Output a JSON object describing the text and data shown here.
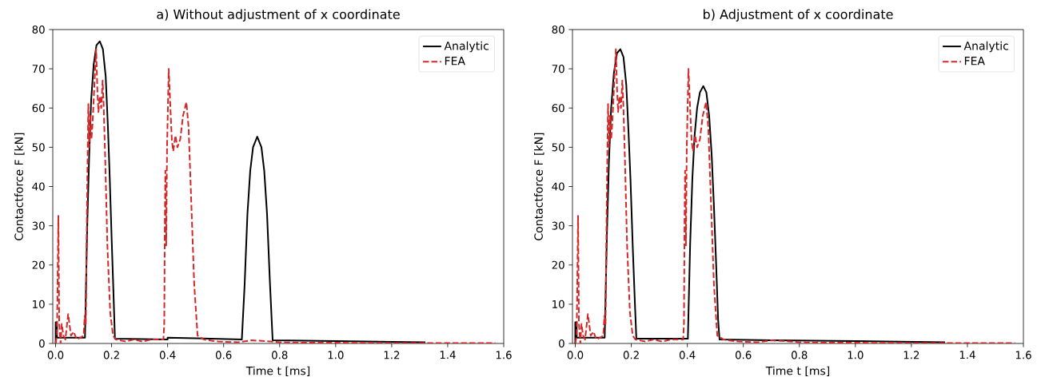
{
  "chart_data": [
    {
      "type": "line",
      "title": "a) Without adjustment of x coordinate",
      "xlabel": "Time t [ms]",
      "ylabel": "Contactforce F [kN]",
      "xlim": [
        -0.01,
        1.6
      ],
      "ylim": [
        0,
        80
      ],
      "xticks": [
        {
          "value": 0,
          "label": "0.0"
        },
        {
          "value": 0.2,
          "label": "0.2"
        },
        {
          "value": 0.4,
          "label": "0.4"
        },
        {
          "value": 0.6,
          "label": "0.6"
        },
        {
          "value": 0.8,
          "label": "0.8"
        },
        {
          "value": 1.0,
          "label": "1.0"
        },
        {
          "value": 1.2,
          "label": "1.2"
        },
        {
          "value": 1.4,
          "label": "1.4"
        },
        {
          "value": 1.6,
          "label": "1.6"
        }
      ],
      "yticks": [
        0,
        10,
        20,
        30,
        40,
        50,
        60,
        70,
        80
      ],
      "legend": "top right",
      "series": [
        {
          "name": "Analytic",
          "color": "#000000",
          "line_style": "solid",
          "x": [
            0,
            0,
            0.005,
            0.005,
            0.105,
            0.113,
            0.12,
            0.127,
            0.136,
            0.146,
            0.158,
            0.169,
            0.179,
            0.187,
            0.193,
            0.201,
            0.208,
            0.212,
            0.4,
            0.4,
            0.665,
            0.675,
            0.685,
            0.695,
            0.705,
            0.72,
            0.735,
            0.745,
            0.755,
            0.765,
            0.775,
            1.0,
            1.32
          ],
          "values": [
            0,
            5.4,
            5.4,
            1.5,
            1.5,
            30,
            48,
            62,
            71,
            76,
            77,
            75,
            68,
            55,
            43,
            25,
            10,
            1.2,
            1.0,
            1.5,
            1.0,
            15,
            33,
            44,
            50,
            52.7,
            50,
            44,
            33,
            16,
            0.8,
            0.6,
            0.3
          ]
        },
        {
          "name": "FEA",
          "color": "#d62728",
          "line_style": "dashed",
          "x": [
            0,
            0.005,
            0.01,
            0.013,
            0.018,
            0.022,
            0.028,
            0.035,
            0.045,
            0.055,
            0.065,
            0.075,
            0.09,
            0.1,
            0.104,
            0.108,
            0.113,
            0.117,
            0.12,
            0.124,
            0.128,
            0.132,
            0.136,
            0.14,
            0.145,
            0.149,
            0.153,
            0.158,
            0.163,
            0.168,
            0.172,
            0.178,
            0.185,
            0.195,
            0.205,
            0.215,
            0.25,
            0.28,
            0.31,
            0.34,
            0.37,
            0.385,
            0.388,
            0.39,
            0.392,
            0.395,
            0.398,
            0.404,
            0.41,
            0.415,
            0.42,
            0.428,
            0.435,
            0.445,
            0.455,
            0.467,
            0.475,
            0.485,
            0.495,
            0.507,
            0.53,
            0.58,
            0.65,
            0.7,
            0.75,
            0.8,
            0.9,
            1.0,
            1.2,
            1.57
          ],
          "values": [
            0,
            2,
            32.5,
            5,
            0,
            5,
            2,
            1,
            7.5,
            2,
            3,
            1,
            1.5,
            2,
            7,
            5,
            40,
            61,
            50,
            58,
            52,
            56,
            62,
            68,
            75,
            65,
            59,
            63,
            60,
            67,
            60,
            45,
            25,
            8,
            2,
            1,
            0.5,
            1,
            0.5,
            1,
            1,
            1,
            5,
            30,
            44,
            25,
            50,
            70,
            60,
            52,
            49,
            53,
            50,
            52,
            58,
            61.5,
            55,
            35,
            15,
            2,
            1,
            0.5,
            0.3,
            0.8,
            0.6,
            0.3,
            0.2,
            0.2,
            0.1,
            0.1
          ]
        }
      ]
    },
    {
      "type": "line",
      "title": "b) Adjustment of x coordinate",
      "xlabel": "Time t [ms]",
      "ylabel": "Contactforce F [kN]",
      "xlim": [
        -0.01,
        1.6
      ],
      "ylim": [
        0,
        80
      ],
      "xticks": [
        {
          "value": 0,
          "label": "0.0"
        },
        {
          "value": 0.2,
          "label": "0.2"
        },
        {
          "value": 0.4,
          "label": "0.4"
        },
        {
          "value": 0.6,
          "label": "0.6"
        },
        {
          "value": 0.8,
          "label": "0.8"
        },
        {
          "value": 1.0,
          "label": "1.0"
        },
        {
          "value": 1.2,
          "label": "1.2"
        },
        {
          "value": 1.4,
          "label": "1.4"
        },
        {
          "value": 1.6,
          "label": "1.6"
        }
      ],
      "yticks": [
        0,
        10,
        20,
        30,
        40,
        50,
        60,
        70,
        80
      ],
      "legend": "top right",
      "series": [
        {
          "name": "Analytic",
          "color": "#000000",
          "line_style": "solid",
          "x": [
            0,
            0,
            0.005,
            0.005,
            0.105,
            0.113,
            0.12,
            0.128,
            0.138,
            0.149,
            0.161,
            0.172,
            0.182,
            0.19,
            0.197,
            0.205,
            0.213,
            0.218,
            0.402,
            0.41,
            0.418,
            0.426,
            0.435,
            0.445,
            0.457,
            0.468,
            0.478,
            0.487,
            0.495,
            0.503,
            0.51,
            0.515,
            0.7,
            1.0,
            1.32
          ],
          "values": [
            0,
            5.4,
            5.4,
            1.5,
            1.5,
            28,
            46,
            60,
            69,
            74,
            75,
            73,
            66,
            54,
            42,
            25,
            10,
            1.2,
            1.2,
            25,
            42,
            53,
            60,
            64,
            65.6,
            64,
            58,
            48,
            35,
            20,
            6,
            1.0,
            0.8,
            0.6,
            0.3
          ]
        },
        {
          "name": "FEA",
          "color": "#d62728",
          "line_style": "dashed",
          "x": [
            0,
            0.005,
            0.01,
            0.013,
            0.018,
            0.022,
            0.028,
            0.035,
            0.045,
            0.055,
            0.065,
            0.075,
            0.09,
            0.1,
            0.104,
            0.108,
            0.113,
            0.117,
            0.12,
            0.124,
            0.128,
            0.132,
            0.136,
            0.14,
            0.145,
            0.149,
            0.153,
            0.158,
            0.163,
            0.168,
            0.172,
            0.178,
            0.185,
            0.195,
            0.205,
            0.215,
            0.25,
            0.28,
            0.31,
            0.34,
            0.37,
            0.385,
            0.388,
            0.39,
            0.392,
            0.395,
            0.398,
            0.404,
            0.41,
            0.415,
            0.42,
            0.428,
            0.435,
            0.445,
            0.455,
            0.467,
            0.475,
            0.485,
            0.495,
            0.507,
            0.53,
            0.58,
            0.65,
            0.7,
            0.75,
            0.8,
            0.9,
            1.0,
            1.2,
            1.57
          ],
          "values": [
            0,
            2,
            32.5,
            5,
            0,
            5,
            2,
            1,
            7.5,
            2,
            3,
            1,
            1.5,
            2,
            7,
            5,
            40,
            61,
            50,
            58,
            52,
            56,
            62,
            68,
            75,
            65,
            59,
            63,
            60,
            67,
            60,
            45,
            25,
            8,
            2,
            1,
            0.5,
            1,
            0.5,
            1,
            1,
            1,
            5,
            30,
            44,
            25,
            50,
            70,
            60,
            52,
            49,
            53,
            50,
            52,
            58,
            61.5,
            55,
            35,
            15,
            2,
            1,
            0.5,
            0.3,
            0.8,
            0.6,
            0.3,
            0.2,
            0.2,
            0.1,
            0.1
          ]
        }
      ]
    }
  ]
}
